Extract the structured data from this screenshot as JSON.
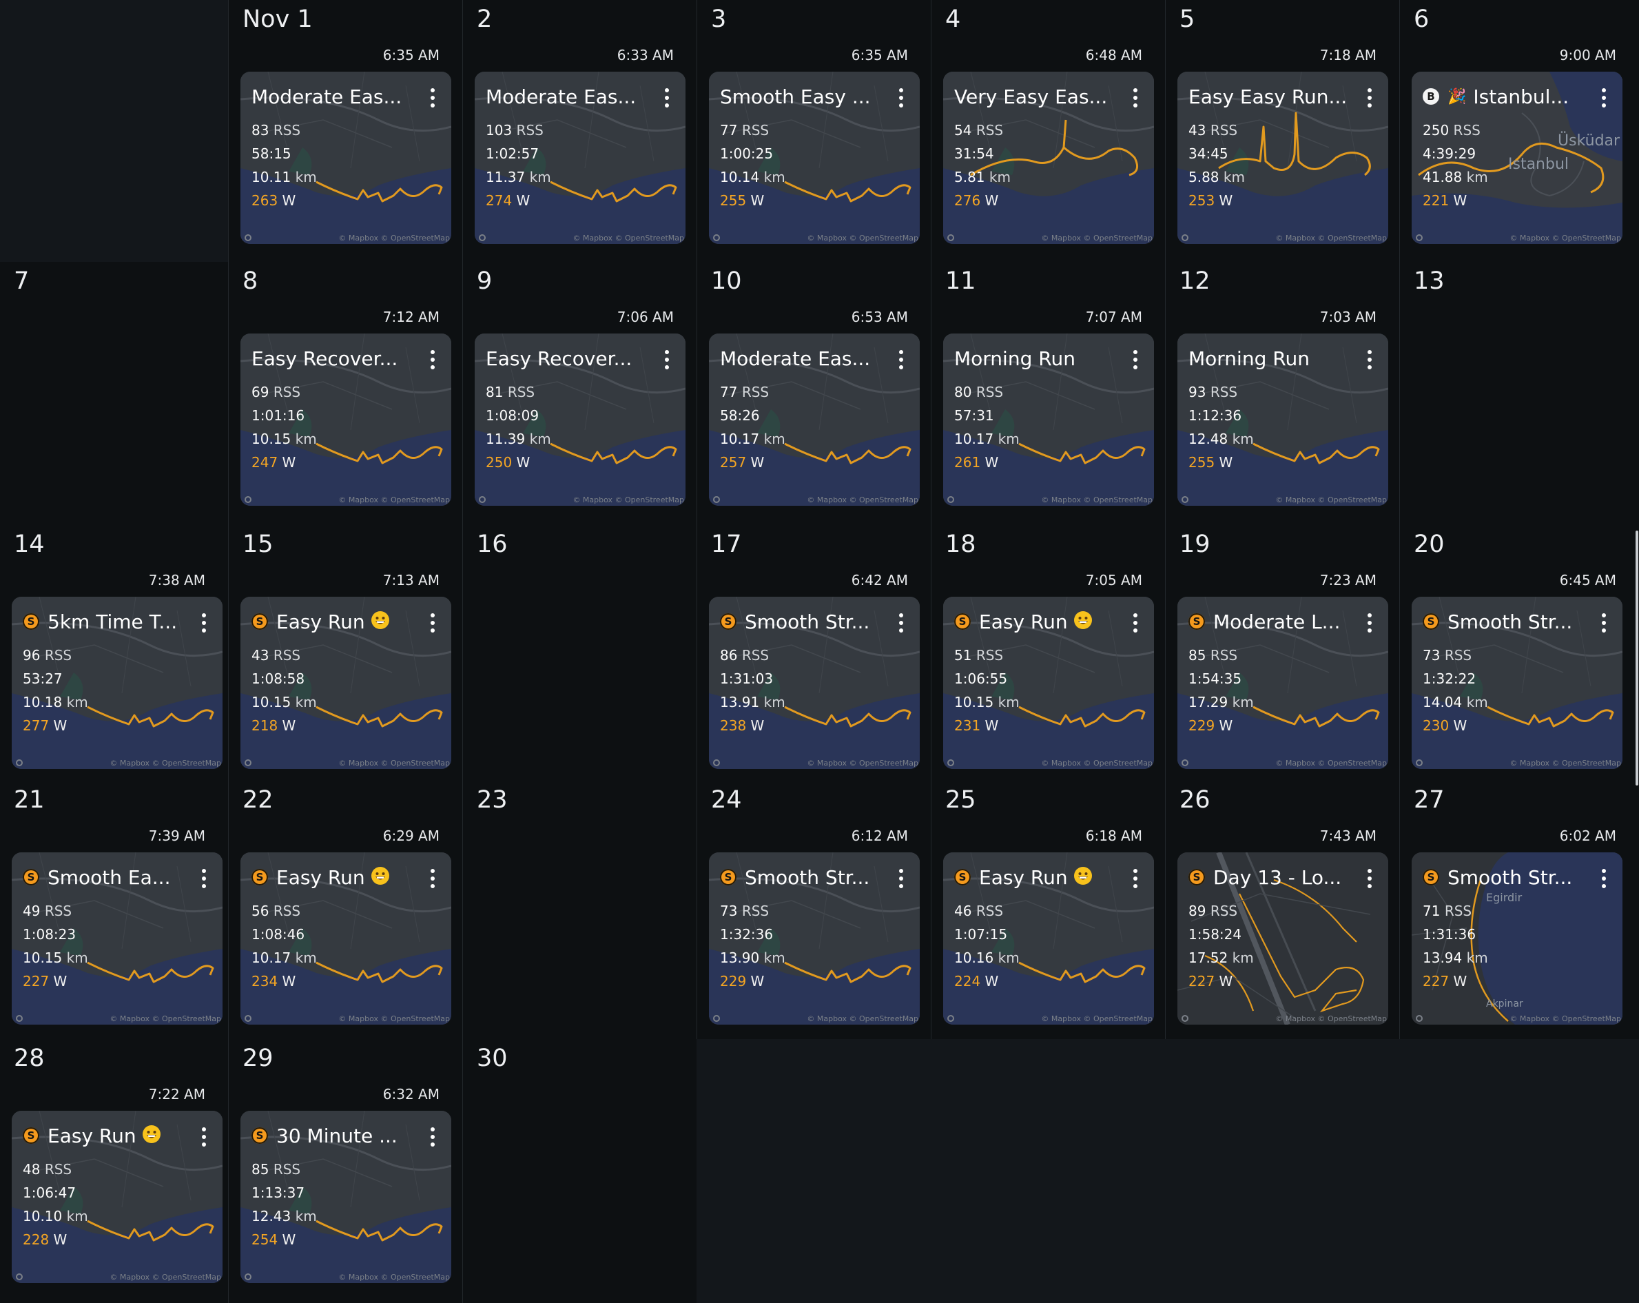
{
  "calendar": {
    "month": "Nov",
    "days": [
      {
        "num": "Nov 1",
        "col": 1,
        "row": 0,
        "activity": {
          "time": "6:35 AM",
          "title": "Moderate Eas...",
          "badge": "",
          "rss": "83",
          "dur": "58:15",
          "km": "10.11",
          "w": "263",
          "map": "coast"
        }
      },
      {
        "num": "2",
        "col": 2,
        "row": 0,
        "activity": {
          "time": "6:33 AM",
          "title": "Moderate Eas...",
          "badge": "",
          "rss": "103",
          "dur": "1:02:57",
          "km": "11.37",
          "w": "274",
          "map": "coast"
        }
      },
      {
        "num": "3",
        "col": 3,
        "row": 0,
        "activity": {
          "time": "6:35 AM",
          "title": "Smooth Easy ...",
          "badge": "",
          "rss": "77",
          "dur": "1:00:25",
          "km": "10.14",
          "w": "255",
          "map": "coast"
        }
      },
      {
        "num": "4",
        "col": 4,
        "row": 0,
        "activity": {
          "time": "6:48 AM",
          "title": "Very Easy Eas...",
          "badge": "",
          "rss": "54",
          "dur": "31:54",
          "km": "5.81",
          "w": "276",
          "map": "coast2"
        }
      },
      {
        "num": "5",
        "col": 5,
        "row": 0,
        "activity": {
          "time": "7:18 AM",
          "title": "Easy Easy Run...",
          "badge": "",
          "rss": "43",
          "dur": "34:45",
          "km": "5.88",
          "w": "253",
          "map": "coast3"
        }
      },
      {
        "num": "6",
        "col": 6,
        "row": 0,
        "activity": {
          "time": "9:00 AM",
          "title": "Istanbul...",
          "badge": "b",
          "party": true,
          "rss": "250",
          "dur": "4:39:29",
          "km": "41.88",
          "w": "221",
          "map": "istanbul"
        }
      },
      {
        "num": "7",
        "col": 0,
        "row": 1,
        "activity": null
      },
      {
        "num": "8",
        "col": 1,
        "row": 1,
        "activity": {
          "time": "7:12 AM",
          "title": "Easy Recover...",
          "badge": "",
          "rss": "69",
          "dur": "1:01:16",
          "km": "10.15",
          "w": "247",
          "map": "coast"
        }
      },
      {
        "num": "9",
        "col": 2,
        "row": 1,
        "activity": {
          "time": "7:06 AM",
          "title": "Easy Recover...",
          "badge": "",
          "rss": "81",
          "dur": "1:08:09",
          "km": "11.39",
          "w": "250",
          "map": "coast"
        }
      },
      {
        "num": "10",
        "col": 3,
        "row": 1,
        "activity": {
          "time": "6:53 AM",
          "title": "Moderate Eas...",
          "badge": "",
          "rss": "77",
          "dur": "58:26",
          "km": "10.17",
          "w": "257",
          "map": "coast"
        }
      },
      {
        "num": "11",
        "col": 4,
        "row": 1,
        "activity": {
          "time": "7:07 AM",
          "title": "Morning Run",
          "badge": "",
          "rss": "80",
          "dur": "57:31",
          "km": "10.17",
          "w": "261",
          "map": "coast"
        }
      },
      {
        "num": "12",
        "col": 5,
        "row": 1,
        "activity": {
          "time": "7:03 AM",
          "title": "Morning Run",
          "badge": "",
          "rss": "93",
          "dur": "1:12:36",
          "km": "12.48",
          "w": "255",
          "map": "coast"
        }
      },
      {
        "num": "13",
        "col": 6,
        "row": 1,
        "activity": null
      },
      {
        "num": "14",
        "col": 0,
        "row": 2,
        "activity": {
          "time": "7:38 AM",
          "title": "5km Time T...",
          "badge": "s",
          "rss": "96",
          "dur": "53:27",
          "km": "10.18",
          "w": "277",
          "map": "coast"
        }
      },
      {
        "num": "15",
        "col": 1,
        "row": 2,
        "activity": {
          "time": "7:13 AM",
          "title": "Easy Run",
          "emoji": true,
          "badge": "s",
          "rss": "43",
          "dur": "1:08:58",
          "km": "10.15",
          "w": "218",
          "map": "coast"
        }
      },
      {
        "num": "16",
        "col": 2,
        "row": 2,
        "activity": null
      },
      {
        "num": "17",
        "col": 3,
        "row": 2,
        "activity": {
          "time": "6:42 AM",
          "title": "Smooth Str...",
          "badge": "s",
          "rss": "86",
          "dur": "1:31:03",
          "km": "13.91",
          "w": "238",
          "map": "coast"
        }
      },
      {
        "num": "18",
        "col": 4,
        "row": 2,
        "activity": {
          "time": "7:05 AM",
          "title": "Easy Run",
          "emoji": true,
          "badge": "s",
          "rss": "51",
          "dur": "1:06:55",
          "km": "10.15",
          "w": "231",
          "map": "coast"
        }
      },
      {
        "num": "19",
        "col": 5,
        "row": 2,
        "activity": {
          "time": "7:23 AM",
          "title": "Moderate L...",
          "badge": "s",
          "rss": "85",
          "dur": "1:54:35",
          "km": "17.29",
          "w": "229",
          "map": "coast"
        }
      },
      {
        "num": "20",
        "col": 6,
        "row": 2,
        "activity": {
          "time": "6:45 AM",
          "title": "Smooth Str...",
          "badge": "s",
          "rss": "73",
          "dur": "1:32:22",
          "km": "14.04",
          "w": "230",
          "map": "coast"
        }
      },
      {
        "num": "21",
        "col": 0,
        "row": 3,
        "activity": {
          "time": "7:39 AM",
          "title": "Smooth Ea...",
          "badge": "s",
          "rss": "49",
          "dur": "1:08:23",
          "km": "10.15",
          "w": "227",
          "map": "coast"
        }
      },
      {
        "num": "22",
        "col": 1,
        "row": 3,
        "activity": {
          "time": "6:29 AM",
          "title": "Easy Run",
          "emoji": true,
          "badge": "s",
          "rss": "56",
          "dur": "1:08:46",
          "km": "10.17",
          "w": "234",
          "map": "coast"
        }
      },
      {
        "num": "23",
        "col": 2,
        "row": 3,
        "activity": null
      },
      {
        "num": "24",
        "col": 3,
        "row": 3,
        "activity": {
          "time": "6:12 AM",
          "title": "Smooth Str...",
          "badge": "s",
          "rss": "73",
          "dur": "1:32:36",
          "km": "13.90",
          "w": "229",
          "map": "coast"
        }
      },
      {
        "num": "25",
        "col": 4,
        "row": 3,
        "activity": {
          "time": "6:18 AM",
          "title": "Easy Run",
          "emoji": true,
          "badge": "s",
          "rss": "46",
          "dur": "1:07:15",
          "km": "10.16",
          "w": "224",
          "map": "coast"
        }
      },
      {
        "num": "26",
        "col": 5,
        "row": 3,
        "activity": {
          "time": "7:43 AM",
          "title": "Day 13 - Lo...",
          "badge": "s",
          "rss": "89",
          "dur": "1:58:24",
          "km": "17.52",
          "w": "227",
          "map": "airport"
        }
      },
      {
        "num": "27",
        "col": 6,
        "row": 3,
        "activity": {
          "time": "6:02 AM",
          "title": "Smooth Str...",
          "badge": "s",
          "rss": "71",
          "dur": "1:31:36",
          "km": "13.94",
          "w": "227",
          "map": "lake"
        }
      },
      {
        "num": "28",
        "col": 0,
        "row": 4,
        "activity": {
          "time": "7:22 AM",
          "title": "Easy Run",
          "emoji": true,
          "badge": "s",
          "rss": "48",
          "dur": "1:06:47",
          "km": "10.10",
          "w": "228",
          "map": "coast"
        }
      },
      {
        "num": "29",
        "col": 1,
        "row": 4,
        "activity": {
          "time": "6:32 AM",
          "title": "30 Minute ...",
          "badge": "s",
          "rss": "85",
          "dur": "1:13:37",
          "km": "12.43",
          "w": "254",
          "map": "coast"
        }
      },
      {
        "num": "30",
        "col": 2,
        "row": 4,
        "activity": null
      }
    ],
    "units": {
      "rss": "RSS",
      "km": "km",
      "w": "W"
    },
    "attribution": "© Mapbox © OpenStreetMap",
    "map_labels": {
      "uskudar": "Üsküdar",
      "istanbul": "Istanbul",
      "egirdir": "Egirdir",
      "akpinar": "Akpinar"
    },
    "icons": {
      "badge_s": "stryd-logo-icon",
      "badge_b": "b-logo-icon",
      "party": "party-popper-icon",
      "emoji": "grinning-face-icon",
      "menu": "more-vertical-icon"
    },
    "colors": {
      "route": "#e29a1f",
      "watts": "#f5a623",
      "water": "#28355a",
      "land": "#34383e"
    }
  }
}
